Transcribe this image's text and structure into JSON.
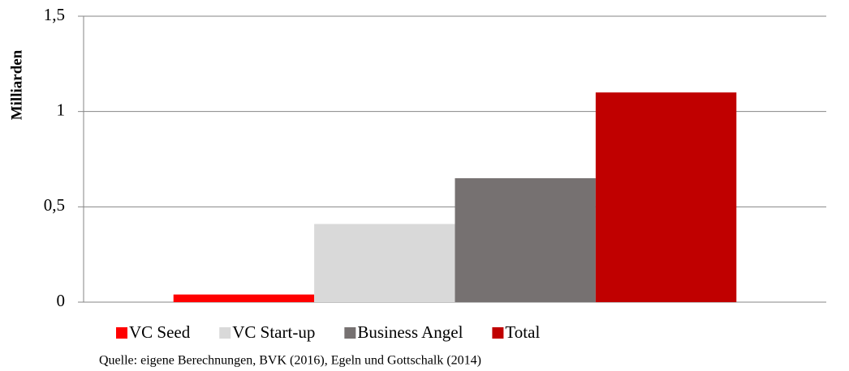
{
  "chart_data": {
    "type": "bar",
    "y_label": "Milliarden",
    "source": "Quelle: eigene Berechnungen, BVK (2016), Egeln und Gottschalk (2014)",
    "categories": [
      null
    ],
    "series": [
      {
        "name": "VC Seed",
        "color": "#ff0000",
        "values": [
          0.04
        ]
      },
      {
        "name": "VC Start-up",
        "color": "#d9d9d9",
        "values": [
          0.41
        ]
      },
      {
        "name": "Business Angel",
        "color": "#767171",
        "values": [
          0.65
        ]
      },
      {
        "name": "Total",
        "color": "#c00000",
        "values": [
          1.1
        ]
      }
    ],
    "ylim": [
      0,
      1.5
    ],
    "yticks": [
      0,
      {
        "value": 0.5,
        "label": "0,5"
      },
      1,
      {
        "value": 1.5,
        "label": "1,5"
      }
    ],
    "grid": true,
    "legend": "bottom"
  }
}
